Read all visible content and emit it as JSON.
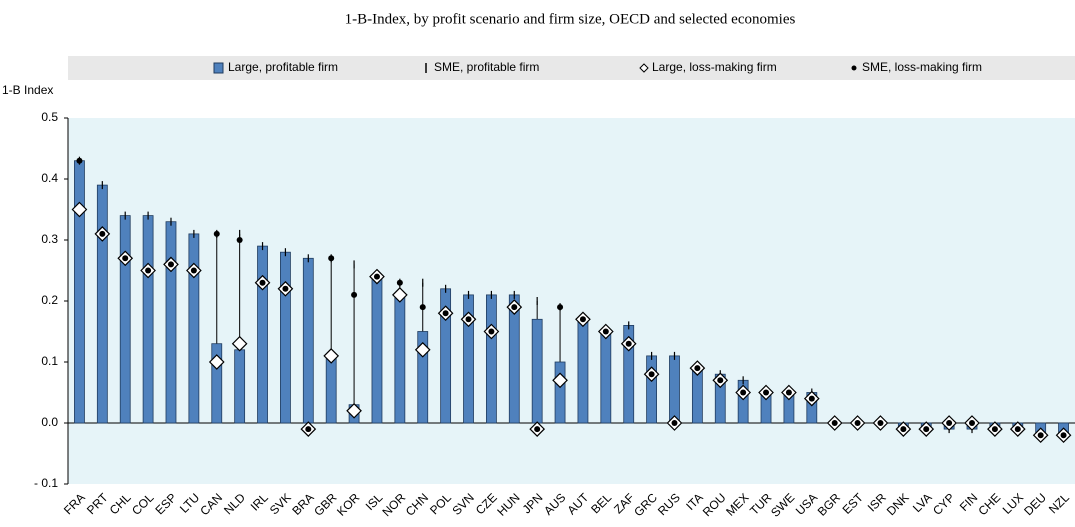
{
  "chart_data": {
    "type": "bar",
    "title": "1-B-Index, by profit scenario and firm size, OECD and selected economies",
    "y_label": "1-B Index",
    "categories": [
      "FRA",
      "PRT",
      "CHL",
      "COL",
      "ESP",
      "LTU",
      "CAN",
      "NLD",
      "IRL",
      "SVK",
      "BRA",
      "GBR",
      "KOR",
      "ISL",
      "NOR",
      "CHN",
      "POL",
      "SVN",
      "CZE",
      "HUN",
      "JPN",
      "AUS",
      "AUT",
      "BEL",
      "ZAF",
      "GRC",
      "RUS",
      "ITA",
      "ROU",
      "MEX",
      "TUR",
      "SWE",
      "USA",
      "BGR",
      "EST",
      "ISR",
      "DNK",
      "LVA",
      "CYP",
      "FIN",
      "CHE",
      "LUX",
      "DEU",
      "NZL"
    ],
    "series": [
      {
        "name": "Large, profitable firm",
        "marker": "bar",
        "color": "#4f81bd",
        "values": [
          0.43,
          0.39,
          0.34,
          0.34,
          0.33,
          0.31,
          0.13,
          0.12,
          0.29,
          0.28,
          0.27,
          0.11,
          0.03,
          0.24,
          0.21,
          0.15,
          0.22,
          0.21,
          0.21,
          0.21,
          0.17,
          0.1,
          0.17,
          0.15,
          0.16,
          0.11,
          0.11,
          0.09,
          0.08,
          0.07,
          0.05,
          0.05,
          0.05,
          0,
          0,
          0,
          -0.01,
          -0.01,
          -0.01,
          -0.01,
          -0.01,
          -0.01,
          -0.02,
          -0.02
        ]
      },
      {
        "name": "SME, profitable firm",
        "marker": "dash",
        "color": "#000000",
        "values": [
          0.43,
          0.39,
          0.34,
          0.34,
          0.33,
          0.31,
          0.31,
          0.31,
          0.29,
          0.28,
          0.27,
          0.27,
          0.26,
          0.24,
          0.23,
          0.23,
          0.22,
          0.21,
          0.21,
          0.21,
          0.2,
          0.19,
          0.17,
          0.15,
          0.16,
          0.11,
          0.11,
          0.09,
          0.08,
          0.07,
          0.05,
          0.05,
          0.05,
          0,
          0,
          0,
          -0.01,
          -0.01,
          -0.01,
          -0.01,
          -0.01,
          -0.01,
          -0.02,
          -0.02
        ]
      },
      {
        "name": "Large, loss-making firm",
        "marker": "diamond",
        "color": "#ffffff",
        "values": [
          0.35,
          0.31,
          0.27,
          0.25,
          0.26,
          0.25,
          0.1,
          0.13,
          0.23,
          0.22,
          -0.01,
          0.11,
          0.02,
          0.24,
          0.21,
          0.12,
          0.18,
          0.17,
          0.15,
          0.19,
          -0.01,
          0.07,
          0.17,
          0.15,
          0.13,
          0.08,
          0,
          0.09,
          0.07,
          0.05,
          0.05,
          0.05,
          0.04,
          0,
          0,
          0,
          -0.01,
          -0.01,
          0,
          0,
          -0.01,
          -0.01,
          -0.02,
          -0.02
        ]
      },
      {
        "name": "SME, loss-making firm",
        "marker": "dot",
        "color": "#000000",
        "values": [
          0.43,
          0.31,
          0.27,
          0.25,
          0.26,
          0.25,
          0.31,
          0.3,
          0.23,
          0.22,
          -0.01,
          0.27,
          0.21,
          0.24,
          0.23,
          0.19,
          0.18,
          0.17,
          0.15,
          0.19,
          -0.01,
          0.19,
          0.17,
          0.15,
          0.13,
          0.08,
          0,
          0.09,
          0.07,
          0.05,
          0.05,
          0.05,
          0.04,
          0,
          0,
          0,
          -0.01,
          -0.01,
          0,
          0,
          -0.01,
          -0.01,
          -0.02,
          -0.02
        ]
      }
    ],
    "ylim": [
      -0.1,
      0.5
    ],
    "yticks": [
      {
        "value": -0.1,
        "label": "- 0.1"
      },
      {
        "value": 0,
        "label": "0.0"
      },
      0.1,
      0.2,
      0.3,
      0.4,
      0.5
    ],
    "plot_background": "#e6f4f8"
  }
}
